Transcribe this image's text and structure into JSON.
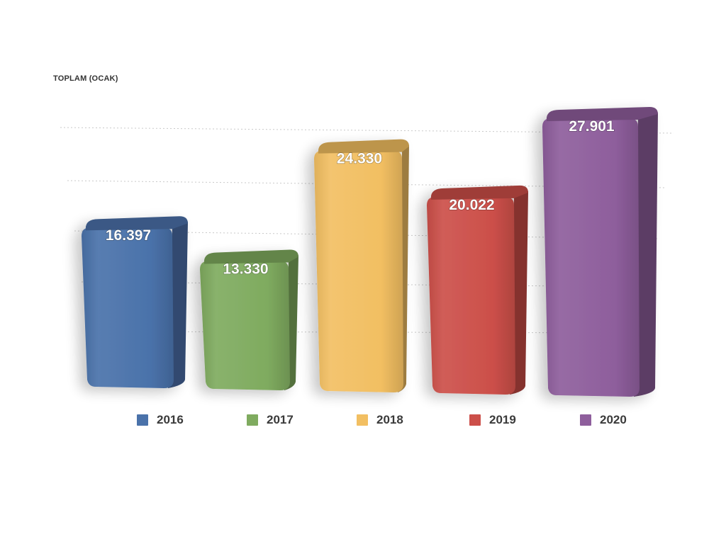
{
  "chart_data": {
    "type": "bar",
    "title": "TOPLAM (OCAK)",
    "categories": [
      "2016",
      "2017",
      "2018",
      "2019",
      "2020"
    ],
    "series": [
      {
        "values": [
          16397,
          13330,
          24330,
          20022,
          27901
        ],
        "labels": [
          "16.397",
          "13.330",
          "24.330",
          "20.022",
          "27.901"
        ]
      }
    ],
    "colors": [
      "#4a72aa",
      "#7fab5f",
      "#f2bf62",
      "#cc4f49",
      "#8e5e9c"
    ],
    "legend": {
      "position": "bottom",
      "entries": [
        "2016",
        "2017",
        "2018",
        "2019",
        "2020"
      ]
    },
    "ylim": [
      0,
      32000
    ],
    "grid": true,
    "xlabel": "",
    "ylabel": ""
  }
}
